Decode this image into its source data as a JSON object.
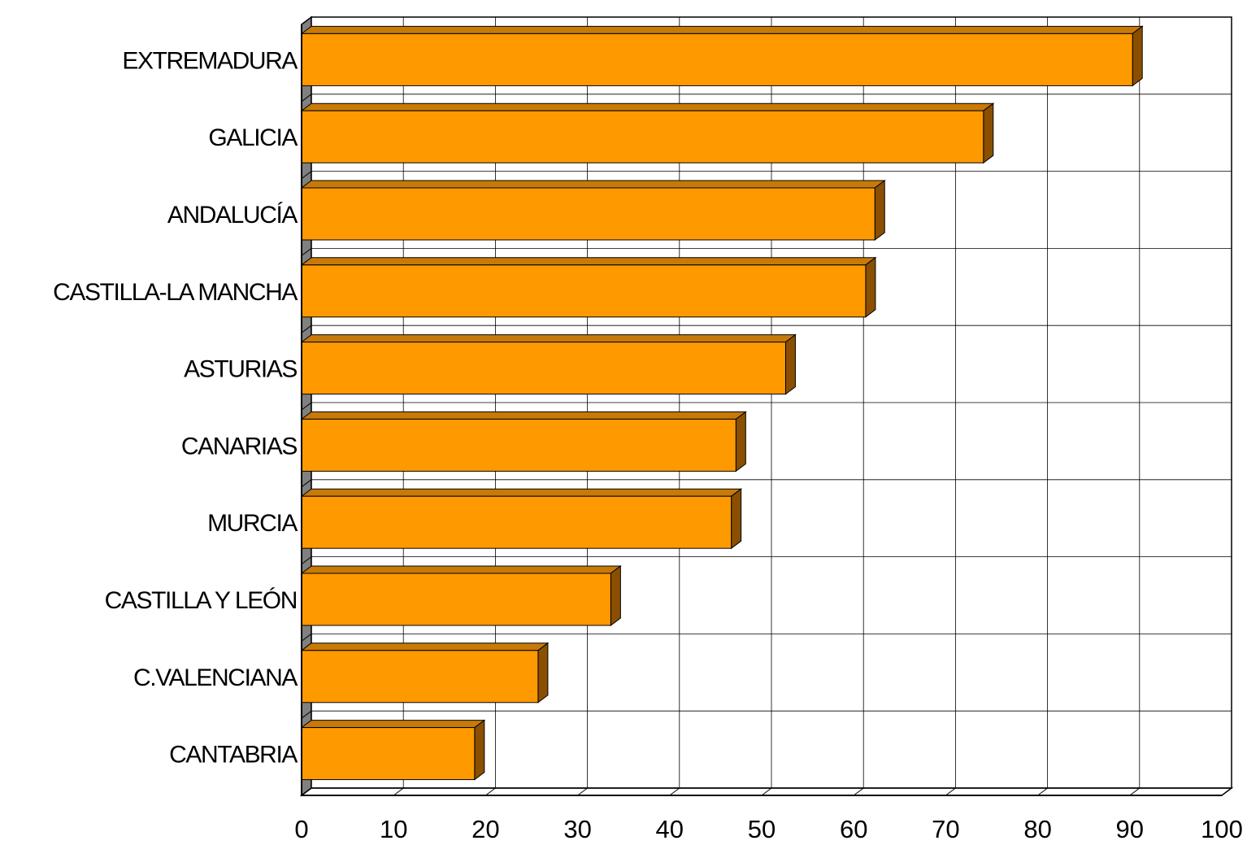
{
  "chart_data": {
    "type": "bar",
    "orientation": "horizontal",
    "style": "3d",
    "categories": [
      "EXTREMADURA",
      "GALICIA",
      "ANDALUCÍA",
      "CASTILLA-LA MANCHA",
      "ASTURIAS",
      "CANARIAS",
      "MURCIA",
      "CASTILLA Y LEÓN",
      "C.VALENCIANA",
      "CANTABRIA"
    ],
    "values": [
      90.3,
      74.1,
      62.3,
      61.3,
      52.6,
      47.2,
      46.7,
      33.6,
      25.7,
      18.8
    ],
    "xlim": [
      0,
      100
    ],
    "xticks": [
      "0",
      "10",
      "20",
      "30",
      "40",
      "50",
      "60",
      "70",
      "80",
      "90",
      "100"
    ],
    "grid": true,
    "legend": "none",
    "title": "",
    "xlabel": "",
    "ylabel": ""
  },
  "colors": {
    "bar_front": "#ff9900",
    "bar_top": "#c87a08",
    "bar_side": "#8a4f00",
    "wall_shade": "#808080",
    "grid": "#000000",
    "background": "#ffffff"
  }
}
